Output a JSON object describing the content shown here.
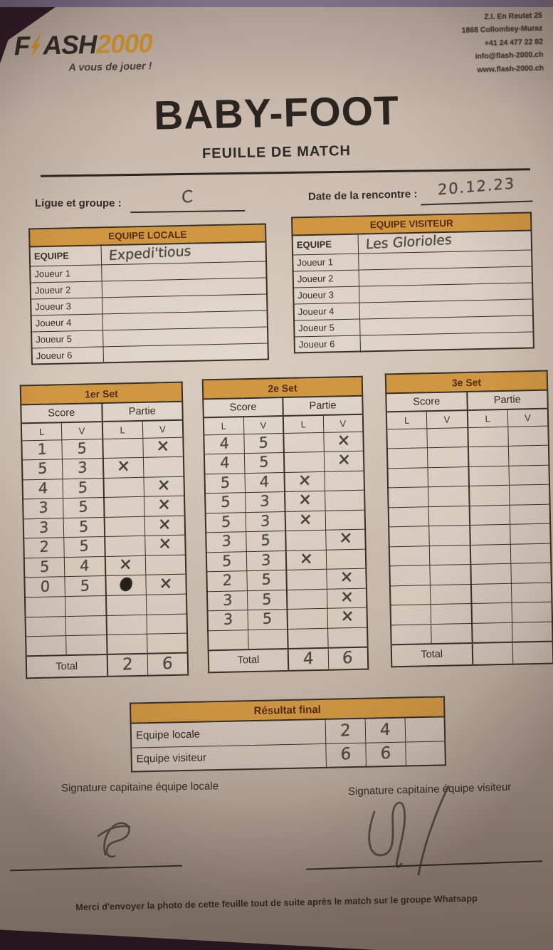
{
  "brand": {
    "name_prefix": "F",
    "name_mid": "ASH",
    "name_suffix": "2000",
    "tagline": "A vous de jouer !"
  },
  "contact": {
    "lines": [
      "Z.I. En Reutet 25",
      "1868 Collombey-Muraz",
      "+41 24 477 22 82",
      "info@flash-2000.ch",
      "www.flash-2000.ch"
    ]
  },
  "title": "BABY-FOOT",
  "subtitle": "FEUILLE DE MATCH",
  "fields": {
    "league_label": "Ligue et groupe :",
    "league_value": "C",
    "date_label": "Date de la rencontre :",
    "date_value": "20.12.23"
  },
  "teams": {
    "local": {
      "header": "EQUIPE LOCALE",
      "team_label": "EQUIPE",
      "team_value": "Expedi'tious",
      "player_labels": [
        "Joueur 1",
        "Joueur 2",
        "Joueur 3",
        "Joueur 4",
        "Joueur 5",
        "Joueur 6"
      ],
      "player_values": [
        "",
        "",
        "",
        "",
        "",
        ""
      ]
    },
    "visitor": {
      "header": "EQUIPE VISITEUR",
      "team_label": "EQUIPE",
      "team_value": "Les Glorioles",
      "player_labels": [
        "Joueur 1",
        "Joueur 2",
        "Joueur 3",
        "Joueur 4",
        "Joueur 5",
        "Joueur 6"
      ],
      "player_values": [
        "",
        "",
        "",
        "",
        "",
        ""
      ]
    }
  },
  "sets": [
    {
      "title": "1er Set",
      "score_label": "Score",
      "partie_label": "Partie",
      "l_label": "L",
      "v_label": "V",
      "total_label": "Total",
      "rows": [
        {
          "sl": "1",
          "sv": "5",
          "pl": "",
          "pv": "X"
        },
        {
          "sl": "5",
          "sv": "3",
          "pl": "X",
          "pv": ""
        },
        {
          "sl": "4",
          "sv": "5",
          "pl": "",
          "pv": "X"
        },
        {
          "sl": "3",
          "sv": "5",
          "pl": "",
          "pv": "X"
        },
        {
          "sl": "3",
          "sv": "5",
          "pl": "",
          "pv": "X"
        },
        {
          "sl": "2",
          "sv": "5",
          "pl": "",
          "pv": "X"
        },
        {
          "sl": "5",
          "sv": "4",
          "pl": "X",
          "pv": ""
        },
        {
          "sl": "0",
          "sv": "5",
          "pl": "blot",
          "pv": "X"
        },
        {
          "sl": "",
          "sv": "",
          "pl": "",
          "pv": ""
        },
        {
          "sl": "",
          "sv": "",
          "pl": "",
          "pv": ""
        },
        {
          "sl": "",
          "sv": "",
          "pl": "",
          "pv": ""
        }
      ],
      "total_l": "2",
      "total_v": "6"
    },
    {
      "title": "2e Set",
      "score_label": "Score",
      "partie_label": "Partie",
      "l_label": "L",
      "v_label": "V",
      "total_label": "Total",
      "rows": [
        {
          "sl": "4",
          "sv": "5",
          "pl": "",
          "pv": "X"
        },
        {
          "sl": "4",
          "sv": "5",
          "pl": "",
          "pv": "X"
        },
        {
          "sl": "5",
          "sv": "4",
          "pl": "X",
          "pv": ""
        },
        {
          "sl": "5",
          "sv": "3",
          "pl": "X",
          "pv": ""
        },
        {
          "sl": "5",
          "sv": "3",
          "pl": "X",
          "pv": ""
        },
        {
          "sl": "3",
          "sv": "5",
          "pl": "",
          "pv": "X"
        },
        {
          "sl": "5",
          "sv": "3",
          "pl": "X",
          "pv": ""
        },
        {
          "sl": "2",
          "sv": "5",
          "pl": "",
          "pv": "X"
        },
        {
          "sl": "3",
          "sv": "5",
          "pl": "",
          "pv": "X"
        },
        {
          "sl": "3",
          "sv": "5",
          "pl": "",
          "pv": "X"
        },
        {
          "sl": "",
          "sv": "",
          "pl": "",
          "pv": ""
        }
      ],
      "total_l": "4",
      "total_v": "6"
    },
    {
      "title": "3e Set",
      "score_label": "Score",
      "partie_label": "Partie",
      "l_label": "L",
      "v_label": "V",
      "total_label": "Total",
      "rows": [
        {
          "sl": "",
          "sv": "",
          "pl": "",
          "pv": ""
        },
        {
          "sl": "",
          "sv": "",
          "pl": "",
          "pv": ""
        },
        {
          "sl": "",
          "sv": "",
          "pl": "",
          "pv": ""
        },
        {
          "sl": "",
          "sv": "",
          "pl": "",
          "pv": ""
        },
        {
          "sl": "",
          "sv": "",
          "pl": "",
          "pv": ""
        },
        {
          "sl": "",
          "sv": "",
          "pl": "",
          "pv": ""
        },
        {
          "sl": "",
          "sv": "",
          "pl": "",
          "pv": ""
        },
        {
          "sl": "",
          "sv": "",
          "pl": "",
          "pv": ""
        },
        {
          "sl": "",
          "sv": "",
          "pl": "",
          "pv": ""
        },
        {
          "sl": "",
          "sv": "",
          "pl": "",
          "pv": ""
        },
        {
          "sl": "",
          "sv": "",
          "pl": "",
          "pv": ""
        }
      ],
      "total_l": "",
      "total_v": ""
    }
  ],
  "result": {
    "header": "Résultat final",
    "rows": [
      {
        "label": "Equipe locale",
        "v1": "2",
        "v2": "4",
        "v3": ""
      },
      {
        "label": "Equipe visiteur",
        "v1": "6",
        "v2": "6",
        "v3": ""
      }
    ]
  },
  "signatures": {
    "local_label": "Signature capitaine équipe locale",
    "visitor_label": "Signature capitaine équipe visiteur"
  },
  "footer_note": "Merci d'envoyer la photo de cette feuille tout de suite après le match sur le groupe Whatsapp",
  "colors": {
    "accent_orange": "#d09743",
    "paper": "#cbbcae",
    "ink": "#33291f",
    "table_border": "#3b3025",
    "background": "#36202c",
    "handwriting": "#4e4741"
  }
}
